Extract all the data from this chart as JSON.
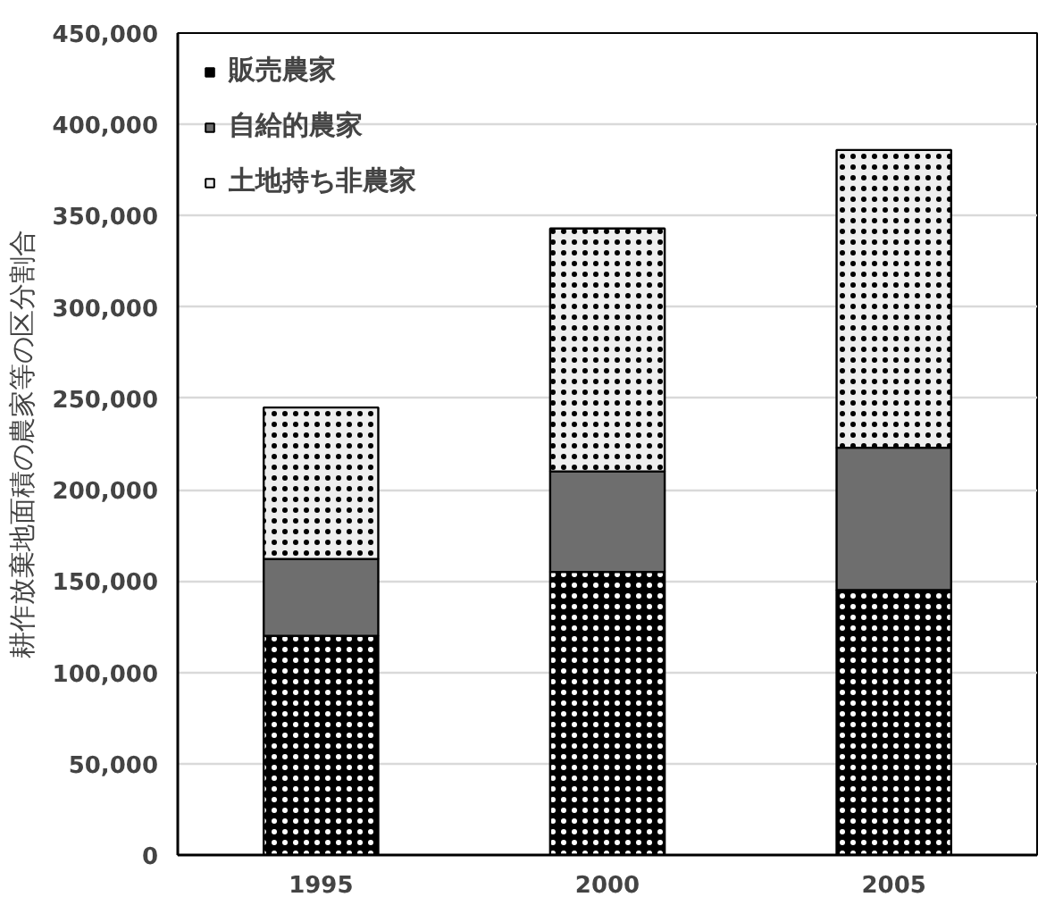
{
  "chart_data": {
    "type": "bar",
    "stacked": true,
    "ylabel": "耕作放棄地面積の農家等の区分割合",
    "categories": [
      "1995",
      "2000",
      "2005"
    ],
    "series": [
      {
        "name": "販売農家",
        "color": "#000000",
        "values": [
          120000,
          155000,
          145000
        ]
      },
      {
        "name": "自給的農家",
        "color": "#6e6e6e",
        "values": [
          42000,
          55000,
          78000
        ]
      },
      {
        "name": "土地持ち非農家",
        "color": "#eeeeee",
        "values": [
          83000,
          133000,
          163000
        ]
      }
    ],
    "ylim": [
      0,
      450000
    ],
    "yticks": [
      {
        "value": 0,
        "label": "0"
      },
      {
        "value": 50000,
        "label": "50,000"
      },
      {
        "value": 100000,
        "label": "100,000"
      },
      {
        "value": 150000,
        "label": "150,000"
      },
      {
        "value": 200000,
        "label": "200,000"
      },
      {
        "value": 250000,
        "label": "250,000"
      },
      {
        "value": 300000,
        "label": "300,000"
      },
      {
        "value": 350000,
        "label": "350,000"
      },
      {
        "value": 400000,
        "label": "400,000"
      },
      {
        "value": 450000,
        "label": "450,000"
      }
    ],
    "grid": "y",
    "legend": "top left"
  }
}
